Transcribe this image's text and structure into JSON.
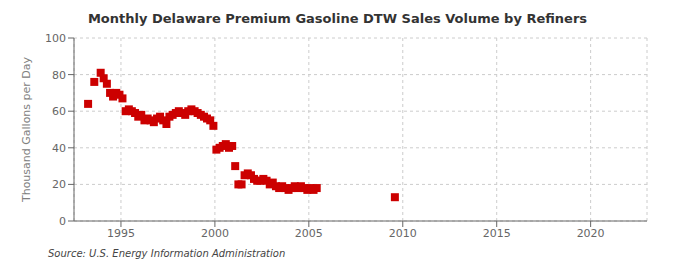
{
  "chart_data": {
    "type": "scatter",
    "title": "Monthly Delaware Premium Gasoline DTW Sales Volume by Refiners",
    "ylabel": "Thousand Gallons per Day",
    "annotations": [
      "Source: U.S. Energy Information Administration"
    ],
    "color": "#cc0000",
    "marker": "square",
    "grid": true,
    "xlim": [
      1992.5,
      2023
    ],
    "ylim": [
      0,
      100
    ],
    "xticks": [
      1995,
      2000,
      2005,
      2010,
      2015,
      2020
    ],
    "yticks": [
      0,
      20,
      40,
      60,
      80,
      100
    ],
    "x": [
      1993.25,
      1993.58,
      1993.92,
      1994.08,
      1994.25,
      1994.42,
      1994.58,
      1994.75,
      1994.92,
      1995.08,
      1995.25,
      1995.42,
      1995.58,
      1995.75,
      1995.92,
      1996.08,
      1996.25,
      1996.42,
      1996.58,
      1996.75,
      1996.92,
      1997.08,
      1997.25,
      1997.42,
      1997.58,
      1997.75,
      1997.92,
      1998.08,
      1998.25,
      1998.42,
      1998.58,
      1998.75,
      1998.92,
      1999.08,
      1999.25,
      1999.42,
      1999.58,
      1999.75,
      1999.92,
      2000.08,
      2000.25,
      2000.42,
      2000.58,
      2000.75,
      2000.92,
      2001.08,
      2001.25,
      2001.42,
      2001.58,
      2001.75,
      2001.92,
      2002.08,
      2002.25,
      2002.42,
      2002.58,
      2002.75,
      2002.92,
      2003.08,
      2003.25,
      2003.42,
      2003.58,
      2003.75,
      2003.92,
      2004.08,
      2004.25,
      2004.42,
      2004.58,
      2004.75,
      2004.92,
      2005.08,
      2005.25,
      2005.42,
      2009.58
    ],
    "values": [
      64,
      76,
      81,
      78,
      75,
      70,
      68,
      70,
      69,
      67,
      60,
      61,
      60,
      59,
      57,
      58,
      55,
      56,
      55,
      54,
      56,
      57,
      55,
      53,
      57,
      58,
      59,
      60,
      59,
      58,
      60,
      61,
      60,
      59,
      58,
      57,
      56,
      55,
      52,
      39,
      40,
      41,
      42,
      40,
      41,
      30,
      20,
      20,
      25,
      26,
      25,
      23,
      22,
      22,
      23,
      22,
      20,
      21,
      19,
      18,
      19,
      18,
      17,
      18,
      19,
      18,
      19,
      18,
      17,
      18,
      17,
      18,
      13
    ]
  }
}
